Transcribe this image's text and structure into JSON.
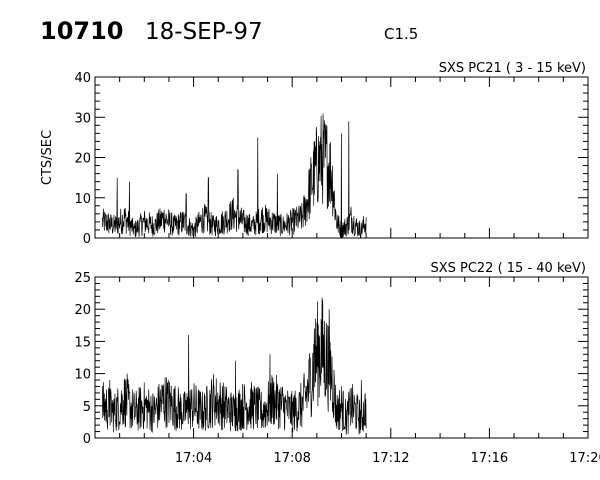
{
  "header": {
    "event_id": "10710",
    "date": "18-SEP-97",
    "goes_class": "C1.5"
  },
  "chart_data": [
    {
      "type": "line",
      "title": "SXS PC21  (  3 - 15 keV)",
      "xlabel": "",
      "ylabel": "CTS/SEC",
      "xlim": [
        "17:00",
        "17:20"
      ],
      "ylim": [
        0,
        40
      ],
      "yticks": [
        0,
        10,
        20,
        30,
        40
      ],
      "xticks": [],
      "grid": false,
      "series": [
        {
          "name": "",
          "x": [
            "17:00:24",
            "17:00:48",
            "17:01:12",
            "17:01:36",
            "17:02:00",
            "17:02:24",
            "17:02:48",
            "17:03:12",
            "17:03:36",
            "17:04:00",
            "17:04:24",
            "17:04:48",
            "17:05:12",
            "17:05:36",
            "17:06:00",
            "17:06:24",
            "17:06:48",
            "17:07:12",
            "17:07:36",
            "17:08:00",
            "17:08:24",
            "17:08:36",
            "17:08:48",
            "17:09:00",
            "17:09:12",
            "17:09:24",
            "17:09:36",
            "17:09:48",
            "17:10:00",
            "17:10:12",
            "17:10:24",
            "17:10:36",
            "17:10:48",
            "17:11:00"
          ],
          "values": [
            4,
            3,
            5,
            2,
            4,
            3,
            5,
            3,
            4,
            2,
            5,
            3,
            4,
            6,
            4,
            3,
            5,
            4,
            3,
            4,
            5,
            9,
            14,
            18,
            20,
            19,
            16,
            4,
            2,
            3,
            5,
            3,
            2,
            4
          ],
          "spikes": [
            {
              "x": "17:00:54",
              "y": 15
            },
            {
              "x": "17:01:24",
              "y": 14
            },
            {
              "x": "17:03:42",
              "y": 11
            },
            {
              "x": "17:04:36",
              "y": 15
            },
            {
              "x": "17:05:48",
              "y": 17
            },
            {
              "x": "17:06:36",
              "y": 25
            },
            {
              "x": "17:07:24",
              "y": 16
            },
            {
              "x": "17:09:06",
              "y": 24
            },
            {
              "x": "17:10:00",
              "y": 26
            },
            {
              "x": "17:10:18",
              "y": 29
            }
          ]
        }
      ]
    },
    {
      "type": "line",
      "title": "SXS PC22  ( 15 - 40 keV)",
      "xlabel": "",
      "ylabel": "",
      "xlim": [
        "17:00",
        "17:20"
      ],
      "ylim": [
        0,
        25
      ],
      "yticks": [
        0,
        5,
        10,
        15,
        20,
        25
      ],
      "xticks": [
        "17:04",
        "17:08",
        "17:12",
        "17:16",
        "17:20"
      ],
      "grid": false,
      "series": [
        {
          "name": "",
          "x": [
            "17:00:24",
            "17:00:48",
            "17:01:12",
            "17:01:36",
            "17:02:00",
            "17:02:24",
            "17:02:48",
            "17:03:12",
            "17:03:36",
            "17:04:00",
            "17:04:24",
            "17:04:48",
            "17:05:12",
            "17:05:36",
            "17:06:00",
            "17:06:24",
            "17:06:48",
            "17:07:12",
            "17:07:36",
            "17:08:00",
            "17:08:24",
            "17:08:36",
            "17:08:48",
            "17:09:00",
            "17:09:12",
            "17:09:24",
            "17:09:36",
            "17:09:48",
            "17:10:00",
            "17:10:12",
            "17:10:24",
            "17:10:36",
            "17:10:48",
            "17:11:00"
          ],
          "values": [
            5,
            4,
            6,
            4,
            5,
            4,
            6,
            5,
            4,
            5,
            4,
            6,
            5,
            4,
            5,
            5,
            4,
            6,
            5,
            4,
            5,
            7,
            10,
            13,
            14,
            12,
            10,
            4,
            5,
            3,
            5,
            4,
            3,
            5
          ],
          "spikes": [
            {
              "x": "17:00:36",
              "y": 9
            },
            {
              "x": "17:01:18",
              "y": 10
            },
            {
              "x": "17:03:48",
              "y": 16
            },
            {
              "x": "17:05:42",
              "y": 12
            },
            {
              "x": "17:07:06",
              "y": 13
            },
            {
              "x": "17:08:54",
              "y": 17
            },
            {
              "x": "17:09:30",
              "y": 20
            },
            {
              "x": "17:10:48",
              "y": 9
            }
          ]
        }
      ]
    }
  ]
}
